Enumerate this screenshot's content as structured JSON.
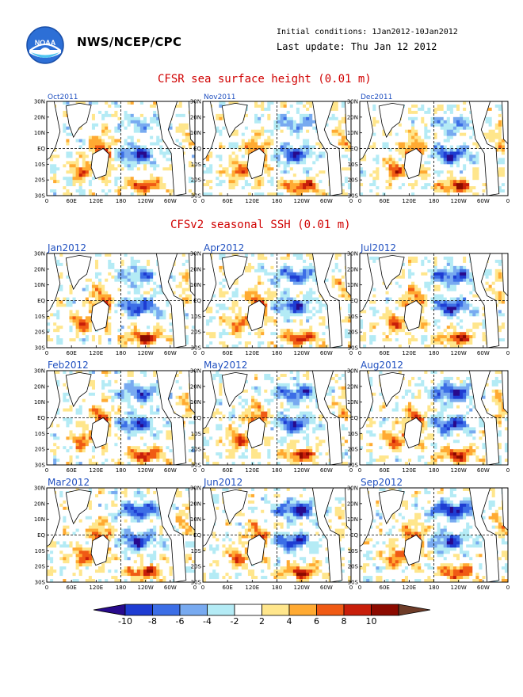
{
  "header": {
    "org": "NWS/NCEP/CPC",
    "initial_conditions": "Initial conditions: 1Jan2012-10Jan2012",
    "last_update": "Last update: Thu Jan 12 2012",
    "logo": "noaa-logo"
  },
  "sections": {
    "observed_title": "CFSR sea surface height (0.01 m)",
    "forecast_title": "CFSv2 seasonal SSH (0.01 m)"
  },
  "axes": {
    "lat_labels": [
      "30N",
      "20N",
      "10N",
      "EQ",
      "10S",
      "20S",
      "30S"
    ],
    "lon_labels": [
      "0",
      "60E",
      "120E",
      "180",
      "120W",
      "60W",
      "0"
    ]
  },
  "panels": {
    "observed": [
      "Oct2011",
      "Nov2011",
      "Dec2011"
    ],
    "forecast": [
      [
        "Jan2012",
        "Apr2012",
        "Jul2012"
      ],
      [
        "Feb2012",
        "May2012",
        "Aug2012"
      ],
      [
        "Mar2012",
        "Jun2012",
        "Sep2012"
      ]
    ]
  },
  "colorbar": {
    "labels": [
      "-10",
      "-8",
      "-6",
      "-4",
      "-2",
      "2",
      "4",
      "6",
      "8",
      "10"
    ],
    "colors": [
      "#280a8c",
      "#1e3cd2",
      "#3c6ee6",
      "#78aaf0",
      "#b4ebf5",
      "#ffffff",
      "#ffe68c",
      "#ffaa32",
      "#f05a14",
      "#c81e0a",
      "#8c0a00",
      "#6e3c28"
    ]
  },
  "colors": {
    "title_red": "#d00000",
    "panel_label_blue": "#2050c0"
  }
}
